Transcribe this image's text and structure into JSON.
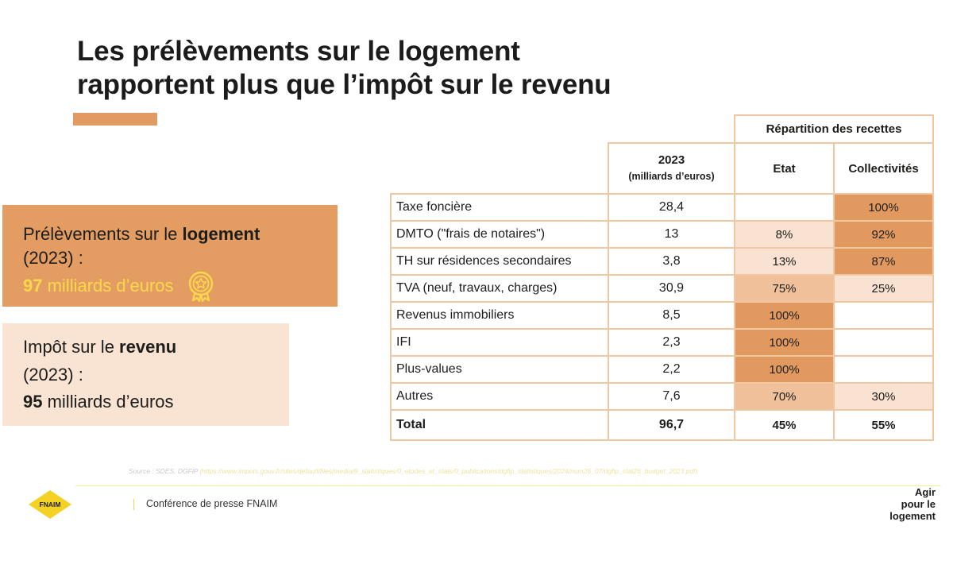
{
  "title": {
    "line1": "Les prélèvements sur le logement",
    "line2": "rapportent plus que l’impôt sur le revenu"
  },
  "colors": {
    "accent": "#e09a62",
    "card_logement": "#e39d63",
    "card_revenu": "#f9e3d3",
    "amount_yellow": "#fcd84a",
    "table_border": "#f0c7a3",
    "heat_dark": "#e2995f",
    "heat_mid": "#f0c09b",
    "heat_light": "#f9e2d1"
  },
  "card_logement": {
    "text_pre": "Prélèvements sur le ",
    "text_bold": "logement",
    "year": "(2023) :",
    "amount_bold": "97",
    "amount_rest": " milliards d’euros",
    "icon": "award-medal-icon"
  },
  "card_revenu": {
    "text_pre": "Impôt sur le ",
    "text_bold": "revenu",
    "year": "(2023) :",
    "amount_bold": "95",
    "amount_rest": " milliards d’euros"
  },
  "table": {
    "group_header": "Répartition des recettes",
    "year_header": "2023",
    "unit_header": "(milliards d’euros)",
    "col_etat": "Etat",
    "col_collectivites": "Collectivités",
    "rows": [
      {
        "label": "Taxe foncière",
        "value": "28,4",
        "etat": "",
        "collectivites": "100%"
      },
      {
        "label": "DMTO (\"frais de notaires\")",
        "value": "13",
        "etat": "8%",
        "collectivites": "92%"
      },
      {
        "label": "TH sur résidences secondaires",
        "value": "3,8",
        "etat": "13%",
        "collectivites": "87%"
      },
      {
        "label": "TVA (neuf, travaux, charges)",
        "value": "30,9",
        "etat": "75%",
        "collectivites": "25%"
      },
      {
        "label": "Revenus immobiliers",
        "value": "8,5",
        "etat": "100%",
        "collectivites": ""
      },
      {
        "label": "IFI",
        "value": "2,3",
        "etat": "100%",
        "collectivites": ""
      },
      {
        "label": "Plus-values",
        "value": "2,2",
        "etat": "100%",
        "collectivites": ""
      },
      {
        "label": "Autres",
        "value": "7,6",
        "etat": "70%",
        "collectivites": "30%"
      }
    ],
    "total": {
      "label": "Total",
      "value": "96,7",
      "etat": "45%",
      "collectivites": "55%"
    }
  },
  "source": {
    "prefix": "Source : SDES, DGFiP ",
    "link": "(https://www.impots.gouv.fr/sites/default/files/media/9_statistiques/0_etudes_et_stats/0_publications/dgfip_statistiques/2024/num26_07/dgfip_stat26_budget_2023.pdf)"
  },
  "footer": {
    "logo_text": "FNAIM",
    "conference": "Conférence de presse FNAIM",
    "tagline_1": "Agir",
    "tagline_2": "pour le",
    "tagline_3": "logement"
  }
}
